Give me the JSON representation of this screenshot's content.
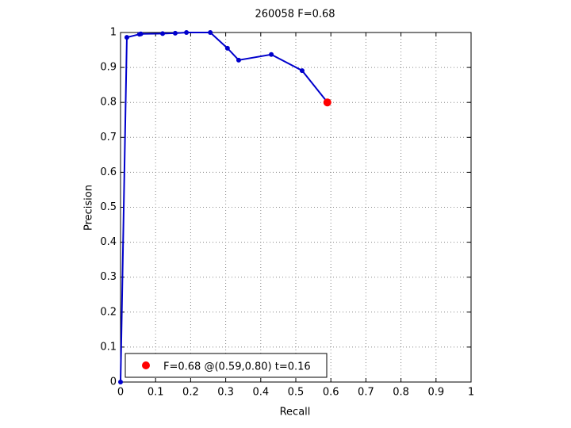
{
  "chart_data": {
    "type": "line",
    "title": "260058 F=0.68",
    "x_label": "Recall",
    "y_label": "Precision",
    "series": [
      {
        "color": "#0000cc",
        "x": [
          0,
          0.018,
          0.054,
          0.058,
          0.12,
          0.156,
          0.188,
          0.256,
          0.305,
          0.337,
          0.43,
          0.518,
          0.588
        ],
        "values": [
          0,
          0.986,
          0.995,
          0.996,
          0.997,
          0.998,
          1.0,
          1.0,
          0.955,
          0.921,
          0.937,
          0.891,
          0.803
        ]
      },
      {
        "name": "F=0.68 @(0.59,0.80) t=0.16",
        "color": "#ff0000",
        "x": [
          0.59
        ],
        "values": [
          0.8
        ]
      }
    ],
    "xlim": [
      0,
      1
    ],
    "ylim": [
      0,
      1
    ],
    "xticks": [
      0,
      0.1,
      0.2,
      0.3,
      0.4,
      0.5,
      0.6,
      0.7,
      0.8,
      0.9,
      1
    ],
    "yticks": [
      0,
      0.1,
      0.2,
      0.3,
      0.4,
      0.5,
      0.6,
      0.7,
      0.8,
      0.9,
      1
    ],
    "grid": true,
    "legend": "lower left"
  }
}
